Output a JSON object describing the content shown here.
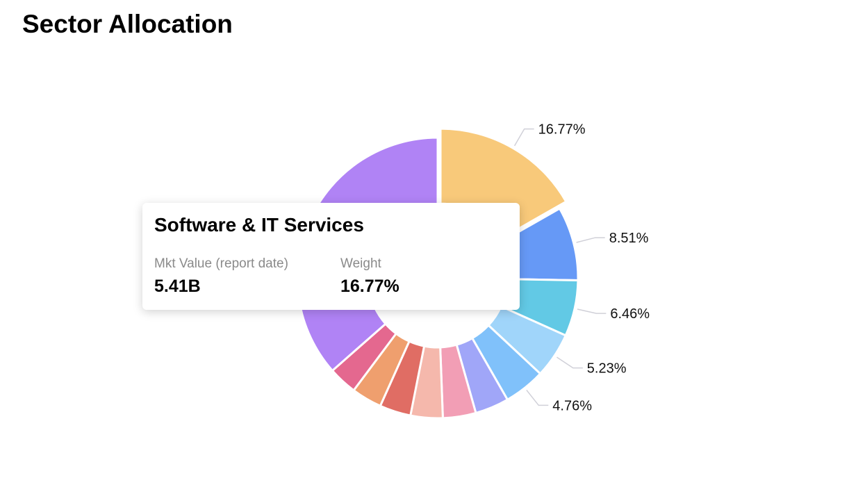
{
  "chart_data": {
    "type": "pie",
    "variant": "donut",
    "title": "Sector Allocation",
    "slices": [
      {
        "label": "Software & IT Services",
        "value": 16.77,
        "display": "16.77%",
        "color": "#F8C97A",
        "highlighted": true
      },
      {
        "value": 8.51,
        "display": "8.51%",
        "color": "#6699F6"
      },
      {
        "value": 6.46,
        "display": "6.46%",
        "color": "#62C9E5"
      },
      {
        "value": 5.23,
        "display": "5.23%",
        "color": "#A0D5FA"
      },
      {
        "value": 4.76,
        "display": "4.76%",
        "color": "#80C1FA"
      },
      {
        "value": 3.9,
        "color": "#A0A6F8"
      },
      {
        "value": 3.8,
        "color": "#F29EB5"
      },
      {
        "value": 3.7,
        "color": "#F5B8AC"
      },
      {
        "value": 3.6,
        "color": "#E06D64"
      },
      {
        "value": 3.5,
        "color": "#EF9F6E"
      },
      {
        "value": 3.3,
        "color": "#E4688F"
      },
      {
        "value": 36.5,
        "color": "#B083F5"
      }
    ]
  },
  "tooltip": {
    "title": "Software & IT Services",
    "mkt_value_label": "Mkt Value (report date)",
    "mkt_value": "5.41B",
    "weight_label": "Weight",
    "weight": "16.77%"
  }
}
